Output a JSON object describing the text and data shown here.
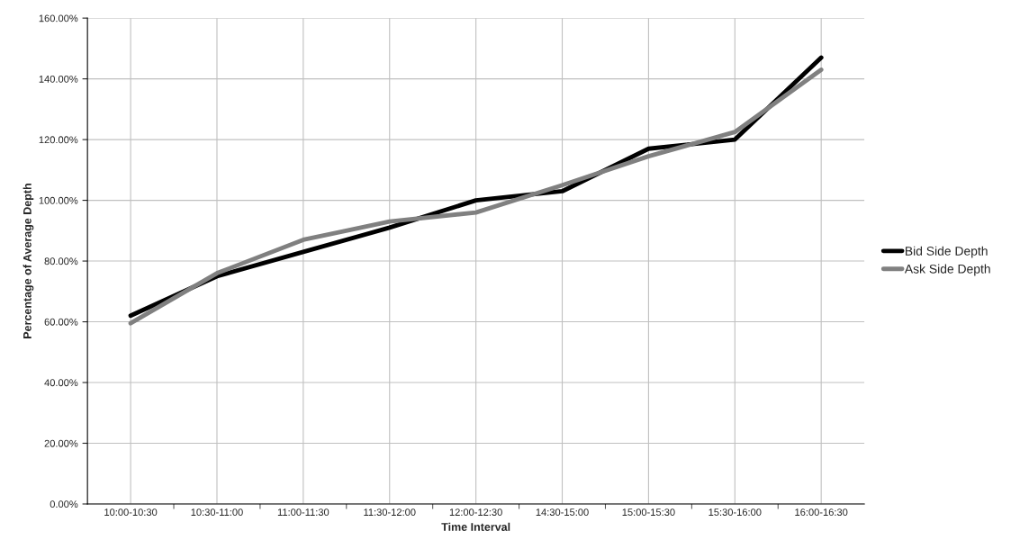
{
  "chart_data": {
    "type": "line",
    "xlabel": "Time Interval",
    "ylabel": "Percentage of Average Depth",
    "categories": [
      "10:00-10:30",
      "10:30-11:00",
      "11:00-11:30",
      "11:30-12:00",
      "12:00-12:30",
      "14:30-15:00",
      "15:00-15:30",
      "15:30-16:00",
      "16:00-16:30"
    ],
    "series": [
      {
        "name": "Bid Side Depth",
        "color": "#000000",
        "values": [
          62,
          75,
          83,
          91,
          100,
          103,
          117,
          120,
          147
        ]
      },
      {
        "name": "Ask Side Depth",
        "color": "#808080",
        "values": [
          59.5,
          76,
          87,
          93,
          96,
          105,
          114.5,
          122.5,
          143
        ]
      }
    ],
    "ylim": [
      0,
      160
    ],
    "yticks": [
      {
        "value": 0,
        "label": "0.00%"
      },
      {
        "value": 20,
        "label": "20.00%"
      },
      {
        "value": 40,
        "label": "40.00%"
      },
      {
        "value": 60,
        "label": "60.00%"
      },
      {
        "value": 80,
        "label": "80.00%"
      },
      {
        "value": 100,
        "label": "100.00%"
      },
      {
        "value": 120,
        "label": "120.00%"
      },
      {
        "value": 140,
        "label": "140.00%"
      },
      {
        "value": 160,
        "label": "160.00%"
      }
    ],
    "grid": true,
    "legend": "right",
    "marker": "none",
    "line_style": "solid"
  }
}
